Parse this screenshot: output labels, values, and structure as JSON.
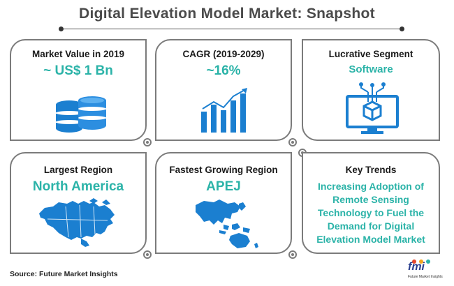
{
  "title": "Digital Elevation Model Market: Snapshot",
  "cards": {
    "market_value": {
      "label": "Market Value in 2019",
      "value": "~ US$ 1 Bn",
      "icon": "database-icon"
    },
    "cagr": {
      "label": "CAGR (2019-2029)",
      "value": "~16%",
      "icon": "bar-chart-icon"
    },
    "segment": {
      "label": "Lucrative Segment",
      "value": "Software",
      "icon": "monitor-circuit-icon"
    },
    "largest_region": {
      "label": "Largest Region",
      "value": "North America",
      "icon": "north-america-map-icon"
    },
    "fastest_region": {
      "label": "Fastest Growing Region",
      "value": "APEJ",
      "icon": "asia-pacific-map-icon"
    },
    "key_trends": {
      "label": "Key Trends",
      "lines": [
        "Increasing Adoption of",
        "Remote Sensing",
        "Technology to Fuel the",
        "Demand for Digital",
        "Elevation Model Market"
      ]
    }
  },
  "source": "Source: Future Market Insights",
  "logo": {
    "text": "fmi",
    "subtext": "Future Market Insights"
  },
  "colors": {
    "accent": "#2bb3a8",
    "icon_blue": "#1b7fd0",
    "border": "#7b7b7b",
    "logo_blue": "#2a3f8f"
  }
}
